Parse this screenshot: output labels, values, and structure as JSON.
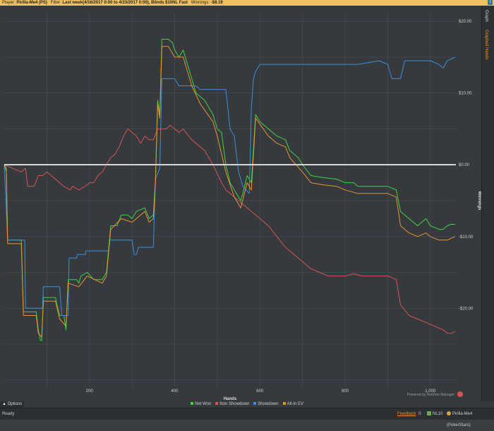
{
  "header": {
    "player_label": "Player:",
    "player_value": "Pirilla-Me4 (PS)",
    "filter_label": "Filter:",
    "filter_value": "Last week(4/16/2017 0:00 to 4/23/2017 0:00), Blinds $10NL Fast",
    "winnings_label": "Winnings:",
    "winnings_value": "-$8.19"
  },
  "side_tabs": [
    "Graph",
    "Graphed Hands"
  ],
  "options_label": "Options",
  "status": {
    "ready": "Ready",
    "feedback": "Feedback",
    "sep": "B",
    "stake": "NL10",
    "player": "Pirilla-Me4 (PokerStars)"
  },
  "logo_text": "Powered by Hold'em Manager",
  "colors": {
    "net_won": "#3ed43e",
    "non_showdown": "#d9534f",
    "showdown": "#3b8fd9",
    "all_in_ev": "#e8922e",
    "zero_line": "#ffffff"
  },
  "chart_data": {
    "type": "line",
    "xlabel": "Hands",
    "ylabel": "Winnings",
    "xlim": [
      0,
      1060
    ],
    "ylim": [
      -31,
      21
    ],
    "x_ticks": [
      200,
      400,
      600,
      800,
      1000
    ],
    "x_tick_labels": [
      "200",
      "400",
      "600",
      "800",
      "1,000"
    ],
    "y_ticks": [
      20,
      10,
      0,
      -10,
      -20
    ],
    "y_tick_labels": [
      "$20.00",
      "$10.00",
      "$0.00",
      "-$10.00",
      "-$20.00"
    ],
    "grid": true,
    "legend_position": "bottom",
    "series": [
      {
        "name": "Net Won",
        "color_key": "net_won",
        "points": [
          [
            0,
            0
          ],
          [
            5,
            -0.5
          ],
          [
            8,
            -10.5
          ],
          [
            40,
            -10.5
          ],
          [
            45,
            -20.5
          ],
          [
            75,
            -20.5
          ],
          [
            80,
            -23
          ],
          [
            85,
            -24.5
          ],
          [
            88,
            -24.5
          ],
          [
            92,
            -18.5
          ],
          [
            120,
            -18.5
          ],
          [
            130,
            -21
          ],
          [
            140,
            -21
          ],
          [
            145,
            -23
          ],
          [
            150,
            -16
          ],
          [
            170,
            -16
          ],
          [
            175,
            -16.5
          ],
          [
            180,
            -15.5
          ],
          [
            195,
            -15
          ],
          [
            210,
            -16
          ],
          [
            230,
            -16
          ],
          [
            240,
            -15
          ],
          [
            250,
            -8.5
          ],
          [
            265,
            -8.5
          ],
          [
            268,
            -8
          ],
          [
            275,
            -7
          ],
          [
            290,
            -7
          ],
          [
            300,
            -7.5
          ],
          [
            310,
            -6.5
          ],
          [
            330,
            -6
          ],
          [
            340,
            -7.5
          ],
          [
            350,
            -7
          ],
          [
            355,
            -2
          ],
          [
            360,
            9
          ],
          [
            365,
            7
          ],
          [
            370,
            17.5
          ],
          [
            385,
            17.5
          ],
          [
            395,
            17
          ],
          [
            400,
            16
          ],
          [
            410,
            15
          ],
          [
            420,
            16
          ],
          [
            440,
            12
          ],
          [
            450,
            10
          ],
          [
            460,
            9.5
          ],
          [
            470,
            9
          ],
          [
            490,
            7
          ],
          [
            500,
            5
          ],
          [
            510,
            4.5
          ],
          [
            520,
            0
          ],
          [
            530,
            -2.5
          ],
          [
            540,
            -3.5
          ],
          [
            555,
            -5
          ],
          [
            560,
            -4
          ],
          [
            570,
            -1.5
          ],
          [
            580,
            -2.5
          ],
          [
            590,
            7
          ],
          [
            600,
            6
          ],
          [
            620,
            5
          ],
          [
            640,
            4
          ],
          [
            660,
            3.5
          ],
          [
            670,
            2
          ],
          [
            690,
            1
          ],
          [
            700,
            0
          ],
          [
            720,
            -1.5
          ],
          [
            750,
            -1.8
          ],
          [
            780,
            -2
          ],
          [
            800,
            -2.5
          ],
          [
            820,
            -2.5
          ],
          [
            830,
            -3
          ],
          [
            850,
            -3
          ],
          [
            900,
            -3
          ],
          [
            920,
            -3.5
          ],
          [
            930,
            -6.5
          ],
          [
            950,
            -7.5
          ],
          [
            970,
            -8.5
          ],
          [
            990,
            -7.5
          ],
          [
            1000,
            -8.5
          ],
          [
            1020,
            -9
          ],
          [
            1030,
            -9
          ],
          [
            1040,
            -8.5
          ],
          [
            1048,
            -8.3
          ],
          [
            1058,
            -8.3
          ]
        ]
      },
      {
        "name": "Non Showdown",
        "color_key": "non_showdown",
        "points": [
          [
            0,
            0
          ],
          [
            20,
            -0.5
          ],
          [
            40,
            -1
          ],
          [
            50,
            -0.5
          ],
          [
            55,
            -3
          ],
          [
            70,
            -3
          ],
          [
            80,
            -1.5
          ],
          [
            90,
            -1.5
          ],
          [
            100,
            -1
          ],
          [
            120,
            -2
          ],
          [
            140,
            -3
          ],
          [
            155,
            -3.5
          ],
          [
            160,
            -3
          ],
          [
            175,
            -3.5
          ],
          [
            190,
            -3
          ],
          [
            200,
            -2.5
          ],
          [
            210,
            -2.5
          ],
          [
            220,
            -1.5
          ],
          [
            230,
            -1
          ],
          [
            240,
            0
          ],
          [
            250,
            1
          ],
          [
            260,
            1.5
          ],
          [
            270,
            2.5
          ],
          [
            280,
            4
          ],
          [
            290,
            5
          ],
          [
            300,
            4.5
          ],
          [
            310,
            4
          ],
          [
            320,
            3
          ],
          [
            330,
            4
          ],
          [
            340,
            3.5
          ],
          [
            350,
            3.5
          ],
          [
            360,
            5
          ],
          [
            380,
            5
          ],
          [
            390,
            5.5
          ],
          [
            410,
            4.5
          ],
          [
            420,
            5
          ],
          [
            440,
            3.5
          ],
          [
            450,
            3
          ],
          [
            470,
            2
          ],
          [
            490,
            0
          ],
          [
            510,
            -2.5
          ],
          [
            520,
            -3.5
          ],
          [
            540,
            -4.5
          ],
          [
            550,
            -5
          ],
          [
            560,
            -5.5
          ],
          [
            580,
            -6.5
          ],
          [
            600,
            -7.5
          ],
          [
            620,
            -8.5
          ],
          [
            640,
            -10
          ],
          [
            660,
            -11.5
          ],
          [
            680,
            -12.5
          ],
          [
            700,
            -13.5
          ],
          [
            720,
            -14.5
          ],
          [
            740,
            -15
          ],
          [
            760,
            -15.5
          ],
          [
            780,
            -15.5
          ],
          [
            800,
            -15.5
          ],
          [
            820,
            -15.2
          ],
          [
            840,
            -15.5
          ],
          [
            900,
            -15.5
          ],
          [
            920,
            -16
          ],
          [
            930,
            -19.5
          ],
          [
            950,
            -21
          ],
          [
            970,
            -21.5
          ],
          [
            990,
            -22
          ],
          [
            1010,
            -22.5
          ],
          [
            1030,
            -23
          ],
          [
            1040,
            -23.5
          ],
          [
            1050,
            -23.5
          ],
          [
            1058,
            -23.2
          ]
        ]
      },
      {
        "name": "Showdown",
        "color_key": "showdown",
        "points": [
          [
            0,
            0
          ],
          [
            8,
            -10.5
          ],
          [
            30,
            -10.5
          ],
          [
            48,
            -10.5
          ],
          [
            50,
            -20
          ],
          [
            90,
            -20
          ],
          [
            92,
            -17
          ],
          [
            130,
            -17
          ],
          [
            135,
            -21
          ],
          [
            150,
            -21
          ],
          [
            152,
            -13
          ],
          [
            170,
            -13
          ],
          [
            172,
            -12.5
          ],
          [
            190,
            -12.5
          ],
          [
            192,
            -12
          ],
          [
            230,
            -12
          ],
          [
            245,
            -12
          ],
          [
            248,
            -10.5
          ],
          [
            300,
            -10.5
          ],
          [
            305,
            -12.5
          ],
          [
            310,
            -12.5
          ],
          [
            315,
            -11.5
          ],
          [
            350,
            -11.5
          ],
          [
            355,
            -2
          ],
          [
            365,
            -0.5
          ],
          [
            370,
            12
          ],
          [
            400,
            12
          ],
          [
            410,
            11
          ],
          [
            450,
            11
          ],
          [
            460,
            10.5
          ],
          [
            520,
            10.5
          ],
          [
            530,
            5
          ],
          [
            540,
            4
          ],
          [
            550,
            -1
          ],
          [
            560,
            -3
          ],
          [
            575,
            -4
          ],
          [
            580,
            8
          ],
          [
            585,
            12
          ],
          [
            590,
            13
          ],
          [
            600,
            14
          ],
          [
            800,
            14
          ],
          [
            830,
            14
          ],
          [
            880,
            14.5
          ],
          [
            900,
            14
          ],
          [
            910,
            12
          ],
          [
            930,
            12
          ],
          [
            940,
            14.5
          ],
          [
            1000,
            14.5
          ],
          [
            1020,
            14
          ],
          [
            1030,
            13.5
          ],
          [
            1040,
            14.5
          ],
          [
            1058,
            15
          ]
        ]
      },
      {
        "name": "All-In EV",
        "color_key": "all_in_ev",
        "points": [
          [
            0,
            0
          ],
          [
            5,
            -1
          ],
          [
            8,
            -11
          ],
          [
            40,
            -11
          ],
          [
            45,
            -21
          ],
          [
            75,
            -21
          ],
          [
            80,
            -23.5
          ],
          [
            88,
            -24
          ],
          [
            92,
            -19
          ],
          [
            120,
            -19
          ],
          [
            130,
            -21.5
          ],
          [
            145,
            -22.5
          ],
          [
            150,
            -16.5
          ],
          [
            175,
            -17
          ],
          [
            195,
            -15.5
          ],
          [
            230,
            -16.5
          ],
          [
            240,
            -15.5
          ],
          [
            250,
            -9
          ],
          [
            275,
            -7.5
          ],
          [
            300,
            -8
          ],
          [
            330,
            -6.5
          ],
          [
            340,
            -8
          ],
          [
            350,
            -7.5
          ],
          [
            355,
            -2.5
          ],
          [
            360,
            8.5
          ],
          [
            365,
            6.5
          ],
          [
            370,
            16.5
          ],
          [
            385,
            16.5
          ],
          [
            400,
            15
          ],
          [
            420,
            15
          ],
          [
            440,
            11
          ],
          [
            460,
            8.5
          ],
          [
            490,
            6
          ],
          [
            500,
            4
          ],
          [
            520,
            -1
          ],
          [
            540,
            -4.5
          ],
          [
            555,
            -6
          ],
          [
            570,
            -2.5
          ],
          [
            580,
            -3.5
          ],
          [
            590,
            6.5
          ],
          [
            620,
            4
          ],
          [
            640,
            3
          ],
          [
            660,
            2.5
          ],
          [
            670,
            1
          ],
          [
            700,
            -1
          ],
          [
            720,
            -2.5
          ],
          [
            750,
            -2.8
          ],
          [
            780,
            -3
          ],
          [
            800,
            -3.5
          ],
          [
            830,
            -4
          ],
          [
            900,
            -4
          ],
          [
            920,
            -4.5
          ],
          [
            930,
            -8.5
          ],
          [
            950,
            -9.5
          ],
          [
            970,
            -10
          ],
          [
            990,
            -9.5
          ],
          [
            1000,
            -10
          ],
          [
            1020,
            -10.5
          ],
          [
            1040,
            -10.5
          ],
          [
            1058,
            -10
          ]
        ]
      }
    ],
    "zero_line": 0
  }
}
